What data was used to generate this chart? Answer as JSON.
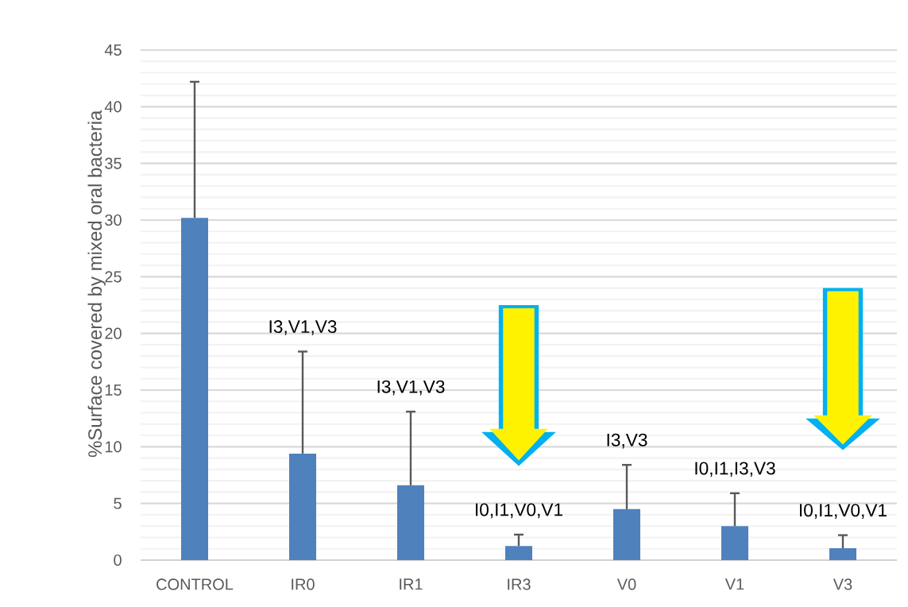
{
  "chart_data": {
    "type": "bar",
    "ylabel": "%Surface covered by mixed oral bacteria",
    "categories": [
      "CONTROL",
      "IR0",
      "IR1",
      "IR3",
      "V0",
      "V1",
      "V3"
    ],
    "values": [
      30.2,
      9.4,
      6.6,
      1.25,
      4.5,
      3.0,
      1.05
    ],
    "errors": [
      12.0,
      9.0,
      6.5,
      1.0,
      3.9,
      2.9,
      1.15
    ],
    "color": "#4f81bd",
    "ylim": [
      0,
      45
    ],
    "yticks": [
      0,
      5,
      10,
      15,
      20,
      25,
      30,
      35,
      40,
      45
    ],
    "grid": "y",
    "annotations": [
      "I3,V1,V3",
      "I3,V1,V3",
      "I0,I1,V0,V1",
      "I3,V3",
      "I0,I1,I3,V3",
      "I0,I1,V0,V1"
    ]
  }
}
